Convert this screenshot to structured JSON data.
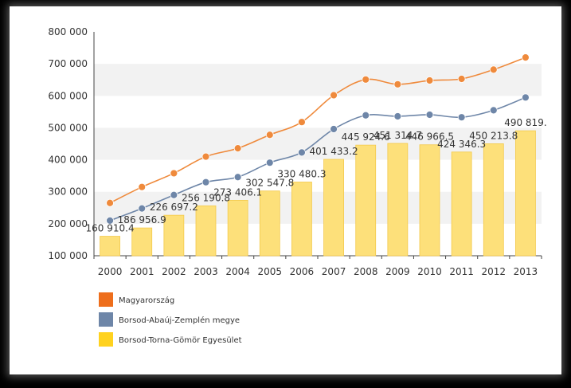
{
  "chart_data": {
    "type": "bar",
    "categories": [
      "2000",
      "2001",
      "2002",
      "2003",
      "2004",
      "2005",
      "2006",
      "2007",
      "2008",
      "2009",
      "2010",
      "2011",
      "2012",
      "2013"
    ],
    "ylim": [
      100000,
      800000
    ],
    "y_ticks": [
      {
        "value": 800000,
        "label": "800 000"
      },
      {
        "value": 700000,
        "label": "700 000"
      },
      {
        "value": 600000,
        "label": "600 000"
      },
      {
        "value": 500000,
        "label": "500 000"
      },
      {
        "value": 400000,
        "label": "400 000"
      },
      {
        "value": 300000,
        "label": "300 000"
      },
      {
        "value": 200000,
        "label": "200 000"
      },
      {
        "value": 100000,
        "label": "100 000"
      }
    ],
    "grid": "horizontal bands",
    "legend_position": "bottom-left",
    "series": [
      {
        "name": "Magyarország",
        "type": "line",
        "color": "#ef8a3c",
        "values": [
          265000,
          315000,
          358000,
          410000,
          436000,
          478000,
          518000,
          602000,
          651000,
          636000,
          648000,
          653000,
          682000,
          720000
        ]
      },
      {
        "name": "Borsod-Abaúj-Zemplén megye",
        "type": "line",
        "color": "#6e86a8",
        "values": [
          210000,
          248000,
          290000,
          330000,
          346000,
          391000,
          423000,
          496000,
          539000,
          536000,
          541000,
          533000,
          555000,
          595000
        ]
      },
      {
        "name": "Borsod-Torna-Gömör Egyesület",
        "type": "bar",
        "color": "#fde07a",
        "values": [
          160910.4,
          186956.9,
          226697.2,
          256190.8,
          273406.1,
          302547.8,
          330480.3,
          401433.2,
          445924.6,
          451314.7,
          446966.5,
          424346.3,
          450213.8,
          490819.0
        ],
        "data_labels": [
          "160 910.4",
          "186 956.9",
          "226 697.2",
          "256 190.8",
          "273 406.1",
          "302 547.8",
          "330 480.3",
          "401 433.2",
          "445 924.6",
          "451 314.7",
          "446 966.5",
          "424 346.3",
          "450 213.8",
          "490 819."
        ]
      }
    ]
  }
}
